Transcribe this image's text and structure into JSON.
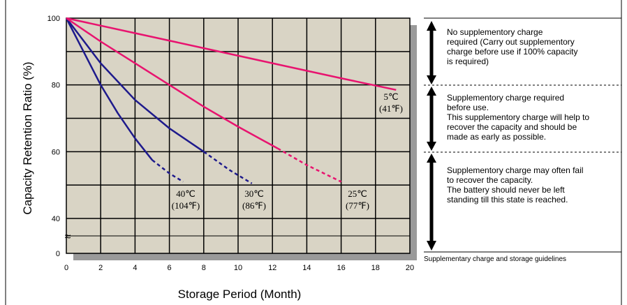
{
  "chart_data": {
    "type": "line",
    "xlabel": "Storage Period (Month)",
    "ylabel": "Capacity Retention Ratio (%)",
    "xlim": [
      0,
      20
    ],
    "ylim": [
      0,
      100
    ],
    "x_ticks": [
      "0",
      "2",
      "4",
      "6",
      "8",
      "10",
      "12",
      "14",
      "16",
      "18",
      "20"
    ],
    "y_ticks": [
      {
        "value": 100,
        "label": "100"
      },
      {
        "value": 80,
        "label": "80"
      },
      {
        "value": 60,
        "label": "60"
      },
      {
        "value": 40,
        "label": "40"
      },
      {
        "value": 0,
        "label": "0"
      }
    ],
    "axis_break_symbol": "≈",
    "grid": true,
    "series": [
      {
        "name": "40℃ (104℉)",
        "label_lines": [
          "40℃",
          "(104℉)"
        ],
        "color": "#1e1a8c",
        "points": [
          [
            0,
            100
          ],
          [
            1,
            90
          ],
          [
            2,
            80
          ],
          [
            3,
            71.5
          ],
          [
            4,
            64
          ],
          [
            5,
            57.5
          ]
        ],
        "dashed_points": [
          [
            5,
            57.5
          ],
          [
            6,
            53.5
          ],
          [
            6.8,
            51
          ]
        ]
      },
      {
        "name": "30℃ (86℉)",
        "label_lines": [
          "30℃",
          "(86℉)"
        ],
        "color": "#1e1a8c",
        "points": [
          [
            0,
            100
          ],
          [
            2,
            86.5
          ],
          [
            4,
            75.5
          ],
          [
            6,
            67
          ],
          [
            8,
            60
          ]
        ],
        "dashed_points": [
          [
            8,
            60
          ],
          [
            9.5,
            54.5
          ],
          [
            10.8,
            50.5
          ]
        ]
      },
      {
        "name": "25℃ (77℉)",
        "label_lines": [
          "25℃",
          "(77℉)"
        ],
        "color": "#e8136f",
        "points": [
          [
            0,
            100
          ],
          [
            2,
            93
          ],
          [
            4,
            86.5
          ],
          [
            6,
            80
          ],
          [
            8,
            73.5
          ],
          [
            10,
            67.5
          ],
          [
            12.3,
            61
          ]
        ],
        "dashed_points": [
          [
            12.3,
            61
          ],
          [
            14,
            56
          ],
          [
            16,
            51
          ]
        ]
      },
      {
        "name": "5℃ (41℉)",
        "label_lines": [
          "5℃",
          "(41℉)"
        ],
        "color": "#e8136f",
        "points": [
          [
            0,
            100
          ],
          [
            4,
            95.5
          ],
          [
            8,
            91
          ],
          [
            12,
            86.5
          ],
          [
            16,
            82
          ],
          [
            19.2,
            78.5
          ]
        ],
        "dashed_points": []
      }
    ]
  },
  "guidelines": {
    "zones": [
      {
        "lines": [
          "No supplementory charge",
          "required (Carry out supplementory",
          "charge before use if 100% capacity",
          "is required)"
        ]
      },
      {
        "lines": [
          "Supplementory charge required",
          "before use.",
          "This supplementory charge will help to",
          "recover  the capacity and should be",
          "made as early as possible."
        ]
      },
      {
        "lines": [
          "Supplementory charge may often fail",
          "to recover the capacity.",
          "The battery should never be left",
          "standing till this state is reached."
        ]
      }
    ],
    "caption": "Supplementary charge and storage guidelines",
    "arrow_color": "#000000",
    "plot_background": "#d9d4c5",
    "shadow_color": "#9a9a9a"
  }
}
